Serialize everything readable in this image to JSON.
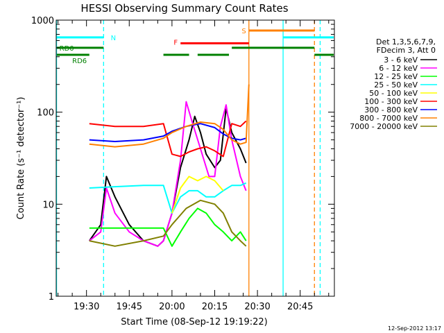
{
  "chart_data": {
    "type": "line",
    "title": "HESSI Observing Summary Count Rates",
    "xlabel": "Start Time (08-Sep-12 19:19:22)",
    "ylabel": "Count Rate (s⁻¹ detector⁻¹)",
    "y_scale": "log",
    "xlim": [
      "19:19:22",
      "20:57:00"
    ],
    "ylim": [
      1,
      1000
    ],
    "x_ticks": [
      "19:30",
      "19:45",
      "20:00",
      "20:15",
      "20:30",
      "20:45"
    ],
    "y_ticks": [
      "1",
      "10",
      "100",
      "1000"
    ],
    "grid": false,
    "legend_position": "right",
    "legend_header": [
      "Det 1,3,5,6,7,9,",
      "FDecim 3, Att 0"
    ],
    "timestamp": "12-Sep-2012 13:17",
    "state_bars": [
      {
        "label": "N",
        "color": "#00ffff",
        "y": 650,
        "segments": [
          [
            "19:19",
            "19:36"
          ],
          [
            "20:39",
            "20:57"
          ]
        ]
      },
      {
        "label": "RD0",
        "color": "#008000",
        "y": 500,
        "segments": [
          [
            "19:19",
            "19:36"
          ],
          [
            "20:21",
            "20:50"
          ]
        ]
      },
      {
        "label": "RD6",
        "color": "#008000",
        "y": 420,
        "segments": [
          [
            "19:19",
            "19:31"
          ],
          [
            "19:57",
            "20:06"
          ],
          [
            "20:09",
            "20:20"
          ],
          [
            "20:50",
            "20:57"
          ]
        ]
      },
      {
        "label": "F",
        "color": "#ff0000",
        "y": 560,
        "segments": [
          [
            "20:03",
            "20:27"
          ]
        ]
      },
      {
        "label": "S",
        "color": "#ff8000",
        "y": 770,
        "segments": [
          [
            "20:27",
            "20:50"
          ]
        ]
      }
    ],
    "vlines": [
      {
        "time": "19:19:30",
        "color": "#00ffff",
        "style": "solid"
      },
      {
        "time": "19:36",
        "color": "#00ffff",
        "style": "dashed"
      },
      {
        "time": "20:27",
        "color": "#ff8000",
        "style": "solid"
      },
      {
        "time": "20:39",
        "color": "#00ffff",
        "style": "solid"
      },
      {
        "time": "20:50",
        "color": "#ff8000",
        "style": "dashed"
      },
      {
        "time": "20:52",
        "color": "#00ffff",
        "style": "dashed"
      }
    ],
    "series": [
      {
        "name": "3 - 6 keV",
        "color": "#000000",
        "points": [
          [
            "19:31",
            4
          ],
          [
            "19:35",
            6
          ],
          [
            "19:37",
            20
          ],
          [
            "19:40",
            12
          ],
          [
            "19:45",
            6
          ],
          [
            "19:50",
            4
          ],
          [
            "19:55",
            3.5
          ],
          [
            "19:57",
            4
          ],
          [
            "20:00",
            8
          ],
          [
            "20:03",
            25
          ],
          [
            "20:06",
            50
          ],
          [
            "20:08",
            90
          ],
          [
            "20:10",
            60
          ],
          [
            "20:12",
            35
          ],
          [
            "20:15",
            25
          ],
          [
            "20:17",
            30
          ],
          [
            "20:19",
            110
          ],
          [
            "20:21",
            60
          ],
          [
            "20:24",
            40
          ],
          [
            "20:26",
            28
          ]
        ]
      },
      {
        "name": "6 - 12 keV",
        "color": "#ff00ff",
        "points": [
          [
            "19:31",
            4
          ],
          [
            "19:35",
            5
          ],
          [
            "19:37",
            15
          ],
          [
            "19:40",
            8
          ],
          [
            "19:45",
            5
          ],
          [
            "19:50",
            4
          ],
          [
            "19:55",
            3.5
          ],
          [
            "19:57",
            4
          ],
          [
            "20:00",
            8
          ],
          [
            "20:03",
            30
          ],
          [
            "20:05",
            130
          ],
          [
            "20:07",
            80
          ],
          [
            "20:10",
            40
          ],
          [
            "20:13",
            20
          ],
          [
            "20:15",
            20
          ],
          [
            "20:17",
            70
          ],
          [
            "20:19",
            120
          ],
          [
            "20:21",
            50
          ],
          [
            "20:24",
            20
          ],
          [
            "20:26",
            14
          ]
        ]
      },
      {
        "name": "12 - 25 keV",
        "color": "#00ff00",
        "points": [
          [
            "19:31",
            5.5
          ],
          [
            "19:40",
            5.5
          ],
          [
            "19:50",
            5.5
          ],
          [
            "19:57",
            5.5
          ],
          [
            "20:00",
            3.5
          ],
          [
            "20:03",
            5
          ],
          [
            "20:06",
            7
          ],
          [
            "20:09",
            9
          ],
          [
            "20:12",
            8
          ],
          [
            "20:15",
            6
          ],
          [
            "20:18",
            5
          ],
          [
            "20:21",
            4
          ],
          [
            "20:24",
            5
          ],
          [
            "20:26",
            4
          ]
        ]
      },
      {
        "name": "25 - 50 keV",
        "color": "#00ffff",
        "points": [
          [
            "19:31",
            15
          ],
          [
            "19:40",
            15.5
          ],
          [
            "19:50",
            16
          ],
          [
            "19:57",
            16
          ],
          [
            "20:00",
            8
          ],
          [
            "20:03",
            12
          ],
          [
            "20:06",
            14
          ],
          [
            "20:09",
            14
          ],
          [
            "20:12",
            12
          ],
          [
            "20:15",
            12
          ],
          [
            "20:18",
            14
          ],
          [
            "20:21",
            16
          ],
          [
            "20:24",
            16
          ],
          [
            "20:26",
            17
          ]
        ]
      },
      {
        "name": "50 - 100 keV",
        "color": "#ffff00",
        "points": [
          [
            "20:00",
            8
          ],
          [
            "20:03",
            15
          ],
          [
            "20:06",
            20
          ],
          [
            "20:09",
            18
          ],
          [
            "20:12",
            20
          ],
          [
            "20:15",
            18
          ],
          [
            "20:18",
            14
          ]
        ]
      },
      {
        "name": "100 - 300 keV",
        "color": "#ff0000",
        "points": [
          [
            "19:31",
            75
          ],
          [
            "19:40",
            70
          ],
          [
            "19:50",
            70
          ],
          [
            "19:57",
            75
          ],
          [
            "20:00",
            35
          ],
          [
            "20:03",
            33
          ],
          [
            "20:06",
            37
          ],
          [
            "20:09",
            40
          ],
          [
            "20:12",
            42
          ],
          [
            "20:15",
            38
          ],
          [
            "20:18",
            33
          ],
          [
            "20:21",
            75
          ],
          [
            "20:24",
            70
          ],
          [
            "20:26",
            80
          ]
        ]
      },
      {
        "name": "300 - 800 keV",
        "color": "#0000ff",
        "points": [
          [
            "19:31",
            50
          ],
          [
            "19:40",
            48
          ],
          [
            "19:50",
            50
          ],
          [
            "19:57",
            55
          ],
          [
            "20:00",
            62
          ],
          [
            "20:05",
            70
          ],
          [
            "20:10",
            75
          ],
          [
            "20:15",
            68
          ],
          [
            "20:18",
            58
          ],
          [
            "20:21",
            52
          ],
          [
            "20:24",
            50
          ],
          [
            "20:26",
            52
          ]
        ]
      },
      {
        "name": "800 - 7000 keV",
        "color": "#ff8000",
        "points": [
          [
            "19:31",
            45
          ],
          [
            "19:40",
            42
          ],
          [
            "19:50",
            45
          ],
          [
            "19:57",
            52
          ],
          [
            "20:00",
            60
          ],
          [
            "20:05",
            70
          ],
          [
            "20:10",
            78
          ],
          [
            "20:15",
            75
          ],
          [
            "20:18",
            65
          ],
          [
            "20:21",
            50
          ],
          [
            "20:24",
            45
          ],
          [
            "20:26",
            47
          ],
          [
            "20:27",
            200
          ]
        ]
      },
      {
        "name": "7000 - 20000 keV",
        "color": "#808000",
        "points": [
          [
            "19:31",
            4
          ],
          [
            "19:40",
            3.5
          ],
          [
            "19:50",
            4
          ],
          [
            "19:57",
            4.5
          ],
          [
            "20:00",
            6
          ],
          [
            "20:05",
            9
          ],
          [
            "20:10",
            11
          ],
          [
            "20:15",
            10
          ],
          [
            "20:18",
            8
          ],
          [
            "20:21",
            5
          ],
          [
            "20:24",
            4
          ],
          [
            "20:26",
            3.5
          ]
        ]
      }
    ]
  }
}
